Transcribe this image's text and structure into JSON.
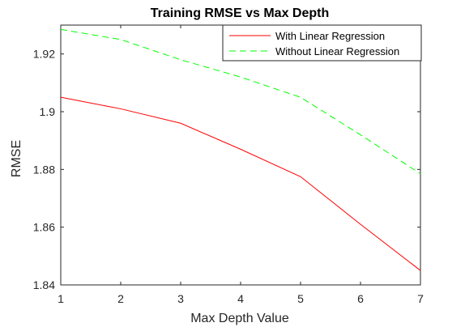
{
  "chart_data": {
    "type": "line",
    "title": "Training RMSE vs Max Depth",
    "xlabel": "Max Depth Value",
    "ylabel": "RMSE",
    "xlim": [
      1,
      7
    ],
    "ylim": [
      1.84,
      1.93
    ],
    "xticks": [
      1,
      2,
      3,
      4,
      5,
      6,
      7
    ],
    "yticks": [
      1.84,
      1.86,
      1.88,
      1.9,
      1.92
    ],
    "ytick_labels": [
      "1.84",
      "1.86",
      "1.88",
      "1.9",
      "1.92"
    ],
    "grid": false,
    "legend_position": "top-right",
    "x": [
      1,
      2,
      3,
      4,
      5,
      6,
      7
    ],
    "series": [
      {
        "name": "With Linear Regression",
        "color": "#ff0000",
        "style": "solid",
        "values": [
          1.905,
          1.901,
          1.896,
          1.887,
          1.8775,
          1.861,
          1.845
        ]
      },
      {
        "name": "Without Linear Regression",
        "color": "#00ff00",
        "style": "dashed",
        "values": [
          1.9285,
          1.925,
          1.918,
          1.912,
          1.905,
          1.892,
          1.8785
        ]
      }
    ]
  }
}
